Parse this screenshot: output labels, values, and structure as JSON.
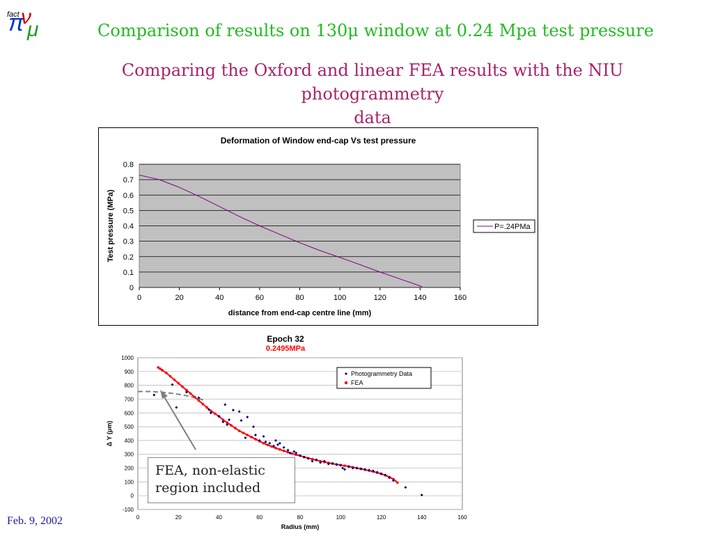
{
  "slide": {
    "title": "Comparison of results on 130μ window at  0.24 Mpa test pressure",
    "subtitle_line1": "Comparing the Oxford and linear FEA results with the NIU photogrammetry",
    "subtitle_line2": "data",
    "footer_date": "Feb. 9, 2002",
    "logo_text": "fact",
    "callout_line1": "FEA, non-elastic",
    "callout_line2": "region included"
  },
  "chart_data": [
    {
      "type": "line",
      "title": "Deformation of Window end-cap  Vs test pressure",
      "xlabel": "distance from end-cap centre line (mm)",
      "ylabel": "Test pressure (MPa)",
      "xlim": [
        0,
        160
      ],
      "ylim": [
        0,
        0.8
      ],
      "xticks": [
        0,
        20,
        40,
        60,
        80,
        100,
        120,
        140,
        160
      ],
      "yticks": [
        0,
        0.1,
        0.2,
        0.3,
        0.4,
        0.5,
        0.6,
        0.7,
        0.8
      ],
      "grid": true,
      "legend_position": "right",
      "background": "#c0c0c0",
      "series": [
        {
          "name": "P=.24PMa",
          "color": "#800080",
          "x": [
            0,
            10,
            20,
            30,
            40,
            50,
            60,
            70,
            80,
            90,
            100,
            110,
            120,
            130,
            141
          ],
          "y": [
            0.73,
            0.7,
            0.65,
            0.59,
            0.525,
            0.46,
            0.4,
            0.345,
            0.29,
            0.24,
            0.195,
            0.148,
            0.1,
            0.055,
            0.005
          ]
        }
      ]
    },
    {
      "type": "scatter",
      "title": "Epoch 32",
      "subtitle": "0.2495MPa",
      "xlabel": "Radius (mm)",
      "ylabel": "Δ Y (μm)",
      "xlim": [
        0,
        160
      ],
      "ylim": [
        -100,
        1000
      ],
      "xticks": [
        0,
        20,
        40,
        60,
        80,
        100,
        120,
        140,
        160
      ],
      "yticks": [
        -100,
        0,
        100,
        200,
        300,
        400,
        500,
        600,
        700,
        800,
        900,
        1000
      ],
      "grid": true,
      "legend_position": "top-right",
      "series": [
        {
          "name": "Photogrammetry Data",
          "color": "#000080",
          "marker": "diamond",
          "x": [
            8,
            17,
            19,
            24,
            30,
            35,
            36,
            40,
            42,
            43,
            44,
            45,
            47,
            50,
            51,
            53,
            54,
            57,
            58,
            60,
            62,
            63,
            65,
            67,
            68,
            69,
            70,
            72,
            74,
            75,
            77,
            78,
            80,
            82,
            84,
            86,
            88,
            90,
            92,
            94,
            96,
            98,
            100,
            101,
            102,
            104,
            106,
            108,
            110,
            112,
            114,
            116,
            118,
            120,
            122,
            124,
            126,
            132,
            140
          ],
          "y": [
            730,
            805,
            640,
            750,
            710,
            625,
            600,
            575,
            535,
            660,
            515,
            550,
            620,
            610,
            545,
            420,
            570,
            500,
            440,
            400,
            430,
            390,
            380,
            360,
            400,
            370,
            380,
            350,
            330,
            310,
            320,
            310,
            290,
            280,
            270,
            250,
            260,
            240,
            250,
            230,
            235,
            225,
            220,
            200,
            190,
            210,
            200,
            200,
            195,
            190,
            185,
            180,
            170,
            160,
            150,
            130,
            110,
            60,
            5
          ]
        },
        {
          "name": "FEA",
          "color": "#ff0000",
          "marker": "circle",
          "x": [
            10,
            11,
            12,
            14,
            16,
            18,
            20,
            22,
            24,
            26,
            28,
            30,
            32,
            34,
            36,
            38,
            40,
            42,
            44,
            46,
            48,
            50,
            52,
            54,
            56,
            58,
            60,
            62,
            64,
            66,
            68,
            70,
            72,
            74,
            76,
            78,
            80,
            82,
            84,
            86,
            88,
            90,
            92,
            94,
            96,
            98,
            100,
            102,
            104,
            106,
            108,
            110,
            112,
            114,
            116,
            118,
            120,
            122,
            124,
            126,
            128
          ],
          "y": [
            930,
            920,
            910,
            890,
            865,
            840,
            815,
            790,
            765,
            740,
            715,
            690,
            665,
            640,
            615,
            595,
            575,
            550,
            530,
            510,
            490,
            470,
            455,
            440,
            425,
            410,
            395,
            380,
            368,
            356,
            345,
            335,
            325,
            315,
            305,
            297,
            290,
            280,
            272,
            265,
            258,
            250,
            244,
            238,
            232,
            227,
            222,
            217,
            212,
            206,
            200,
            194,
            188,
            182,
            175,
            167,
            158,
            148,
            135,
            120,
            95
          ]
        }
      ],
      "annotation_curve": {
        "color": "#808080",
        "style": "dashed",
        "x": [
          0,
          6,
          12,
          18,
          24,
          30,
          33
        ],
        "y": [
          755,
          755,
          750,
          740,
          725,
          705,
          690
        ]
      }
    }
  ]
}
